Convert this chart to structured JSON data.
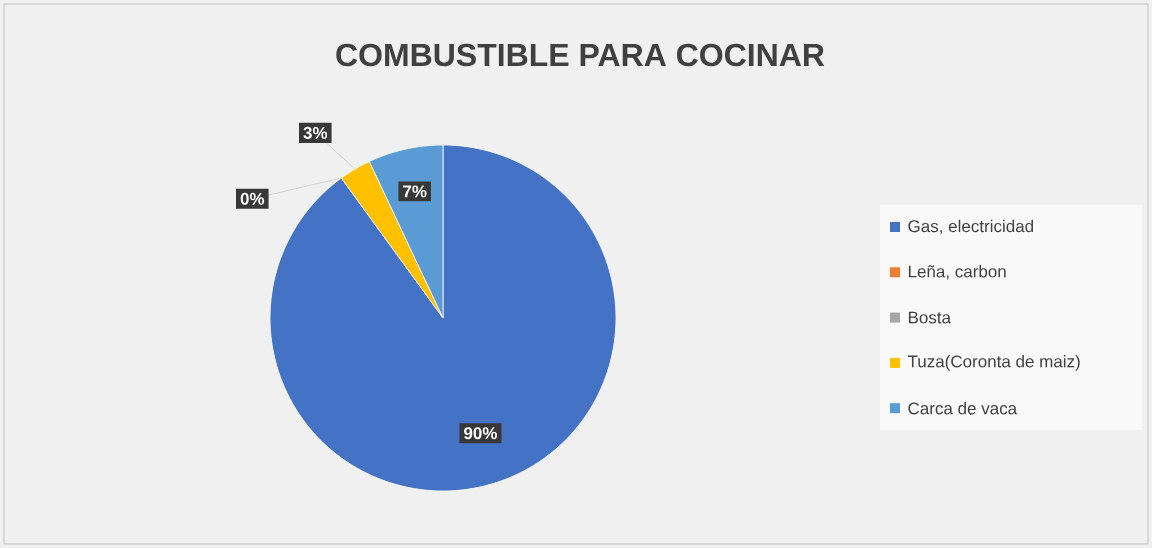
{
  "chart_data": {
    "type": "pie",
    "title": "COMBUSTIBLE PARA COCINAR",
    "categories": [
      "Gas, electricidad",
      "Leña, carbon",
      "Bosta",
      "Tuza(Coronta de maiz)",
      "Carca de vaca"
    ],
    "values": [
      90,
      0,
      0,
      3,
      7
    ],
    "colors": [
      "#4472c4",
      "#ed7d31",
      "#a5a5a5",
      "#ffc000",
      "#5b9bd5"
    ],
    "value_labels": [
      "90%",
      "0%",
      null,
      "3%",
      "7%"
    ],
    "legend": "right"
  }
}
